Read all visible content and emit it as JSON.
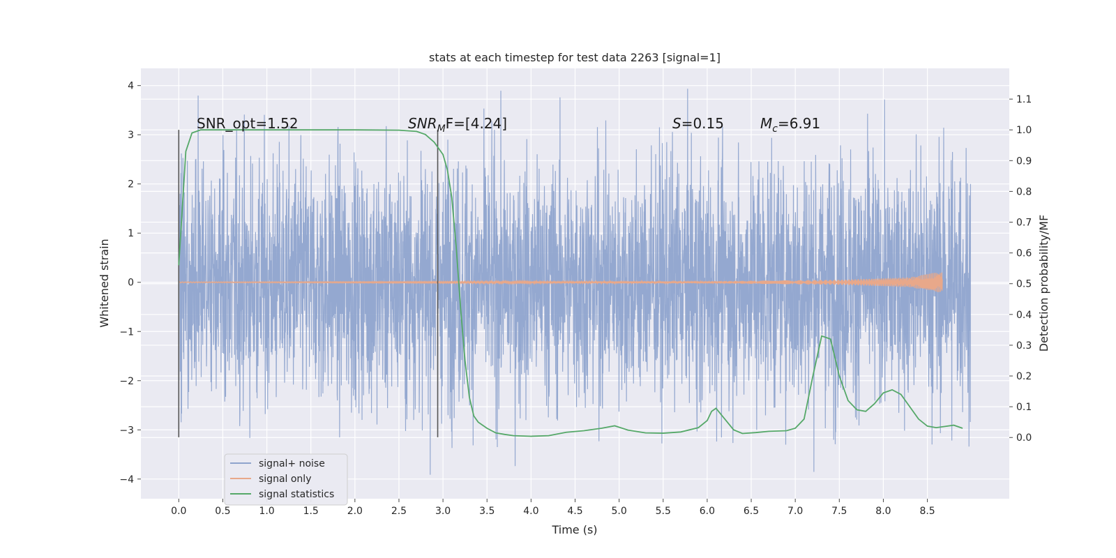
{
  "chart_data": {
    "type": "line",
    "title": "stats at each timestep for test data 2263 [signal=1]",
    "xlabel": "Time (s)",
    "ylabel_left": "Whitened strain",
    "ylabel_right": "Detection probability/MF",
    "xlim": [
      -0.43,
      9.43
    ],
    "ylim_left": [
      -4.4,
      4.35
    ],
    "ylim_right": [
      -0.199,
      1.2
    ],
    "x_ticks": [
      "0.0",
      "0.5",
      "1.0",
      "1.5",
      "2.0",
      "2.5",
      "3.0",
      "3.5",
      "4.0",
      "4.5",
      "5.0",
      "5.5",
      "6.0",
      "6.5",
      "7.0",
      "7.5",
      "8.0",
      "8.5"
    ],
    "y_ticks_left": [
      "4",
      "3",
      "2",
      "1",
      "0",
      "−1",
      "−2",
      "−3",
      "−4"
    ],
    "y_ticks_right": [
      "1.1",
      "1.0",
      "0.9",
      "0.8",
      "0.7",
      "0.6",
      "0.5",
      "0.4",
      "0.3",
      "0.2",
      "0.1",
      "0.0"
    ],
    "grid": true,
    "legend_placement": "lower-left",
    "annotations": {
      "snr_opt": "SNR_opt=1.52",
      "snr_mf_main": "SNR",
      "snr_mf_sub": "M",
      "snr_mf_rest": "F=[4.24]",
      "s_main": "S",
      "s_rest": "=0.15",
      "mc_main": "M",
      "mc_sub": "c",
      "mc_rest": "=6.91"
    },
    "markers": {
      "vlines_x": [
        0.0,
        2.94
      ]
    },
    "series": [
      {
        "name": "signal+ noise",
        "axis": "left",
        "color": "#8fa4cd",
        "t_range": [
          0.0,
          8.99
        ],
        "typical_amplitude": 1.3,
        "max": 3.95,
        "min": -4.0
      },
      {
        "name": "signal only",
        "axis": "left",
        "color": "#e8a88a",
        "t_end": 8.67,
        "envelope": {
          "t": [
            0.0,
            6.0,
            7.5,
            8.3,
            8.6,
            8.67
          ],
          "amp": [
            0.01,
            0.02,
            0.05,
            0.1,
            0.2,
            0.2
          ]
        }
      },
      {
        "name": "signal statistics",
        "axis": "right",
        "color": "#55a868",
        "x": [
          0.0,
          0.08,
          0.15,
          0.25,
          0.35,
          0.5,
          1.0,
          1.5,
          2.0,
          2.5,
          2.7,
          2.8,
          2.9,
          3.0,
          3.05,
          3.1,
          3.15,
          3.2,
          3.25,
          3.3,
          3.35,
          3.4,
          3.45,
          3.5,
          3.6,
          3.7,
          3.8,
          4.0,
          4.2,
          4.4,
          4.6,
          4.8,
          4.95,
          5.1,
          5.3,
          5.5,
          5.7,
          5.9,
          6.0,
          6.05,
          6.1,
          6.2,
          6.3,
          6.4,
          6.55,
          6.7,
          6.9,
          7.0,
          7.1,
          7.2,
          7.3,
          7.4,
          7.5,
          7.6,
          7.7,
          7.8,
          7.9,
          8.0,
          8.1,
          8.2,
          8.3,
          8.4,
          8.5,
          8.6,
          8.7,
          8.8,
          8.9
        ],
        "y": [
          0.56,
          0.93,
          0.99,
          1.0,
          1.0,
          1.0,
          1.0,
          1.0,
          1.0,
          0.999,
          0.995,
          0.985,
          0.96,
          0.92,
          0.87,
          0.78,
          0.62,
          0.42,
          0.25,
          0.13,
          0.07,
          0.05,
          0.04,
          0.03,
          0.015,
          0.01,
          0.006,
          0.004,
          0.006,
          0.017,
          0.022,
          0.03,
          0.038,
          0.024,
          0.015,
          0.014,
          0.018,
          0.032,
          0.055,
          0.085,
          0.095,
          0.06,
          0.025,
          0.013,
          0.016,
          0.02,
          0.022,
          0.03,
          0.06,
          0.2,
          0.33,
          0.32,
          0.2,
          0.12,
          0.09,
          0.085,
          0.11,
          0.145,
          0.155,
          0.14,
          0.1,
          0.06,
          0.037,
          0.032,
          0.036,
          0.04,
          0.03
        ]
      }
    ]
  }
}
